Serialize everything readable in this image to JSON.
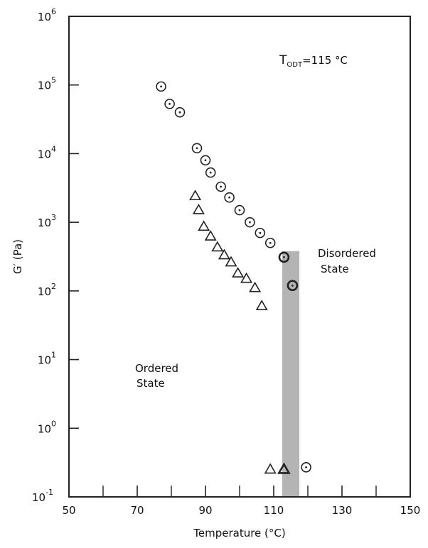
{
  "chart_data": {
    "type": "scatter",
    "title": "",
    "xlabel": "Temperature (°C)",
    "ylabel": "G′ (Pa)",
    "xlim": [
      50,
      150
    ],
    "ylim": [
      0.1,
      1000000
    ],
    "yscale": "log",
    "grid": false,
    "x_ticks": [
      {
        "value": 50,
        "label": "50"
      },
      {
        "value": 70,
        "label": "70"
      },
      {
        "value": 90,
        "label": "90"
      },
      {
        "value": 110,
        "label": "110"
      },
      {
        "value": 130,
        "label": "130"
      },
      {
        "value": 150,
        "label": "150"
      }
    ],
    "x_minor_ticks": [
      60,
      80,
      100,
      120,
      140
    ],
    "y_ticks": [
      {
        "value": 0.1,
        "base": "10",
        "exp": "-1"
      },
      {
        "value": 1,
        "base": "10",
        "exp": "0"
      },
      {
        "value": 10,
        "base": "10",
        "exp": "1"
      },
      {
        "value": 100,
        "base": "10",
        "exp": "2"
      },
      {
        "value": 1000,
        "base": "10",
        "exp": "3"
      },
      {
        "value": 10000,
        "base": "10",
        "exp": "4"
      },
      {
        "value": 100000,
        "base": "10",
        "exp": "5"
      },
      {
        "value": 1000000,
        "base": "10",
        "exp": "6"
      }
    ],
    "series": [
      {
        "marker": "circle",
        "x": [
          77,
          79.5,
          82.5,
          87.5,
          90,
          91.5,
          94.5,
          97,
          100,
          103,
          106,
          109,
          113,
          115.5,
          119.5
        ],
        "y": [
          95000,
          53000,
          40000,
          12000,
          8000,
          5300,
          3300,
          2300,
          1500,
          1000,
          700,
          500,
          310,
          120,
          0.27
        ]
      },
      {
        "marker": "triangle",
        "x": [
          87,
          88,
          89.5,
          91.5,
          93.5,
          95.5,
          97.5,
          99.5,
          102,
          104.5,
          106.5,
          109,
          113
        ],
        "y": [
          2400,
          1500,
          860,
          620,
          430,
          330,
          260,
          180,
          150,
          110,
          60,
          0.25,
          0.25
        ]
      }
    ],
    "shaded_band": {
      "x_from": 112.5,
      "x_to": 117.5,
      "y_top": 380,
      "color": "#b4b4b4"
    },
    "annotations": {
      "todt_main": "T",
      "todt_sub": "ODT",
      "todt_rest": "=115 °C",
      "disordered_line1": "Disordered",
      "disordered_line2": "State",
      "ordered_line1": "Ordered",
      "ordered_line2": "State"
    }
  }
}
